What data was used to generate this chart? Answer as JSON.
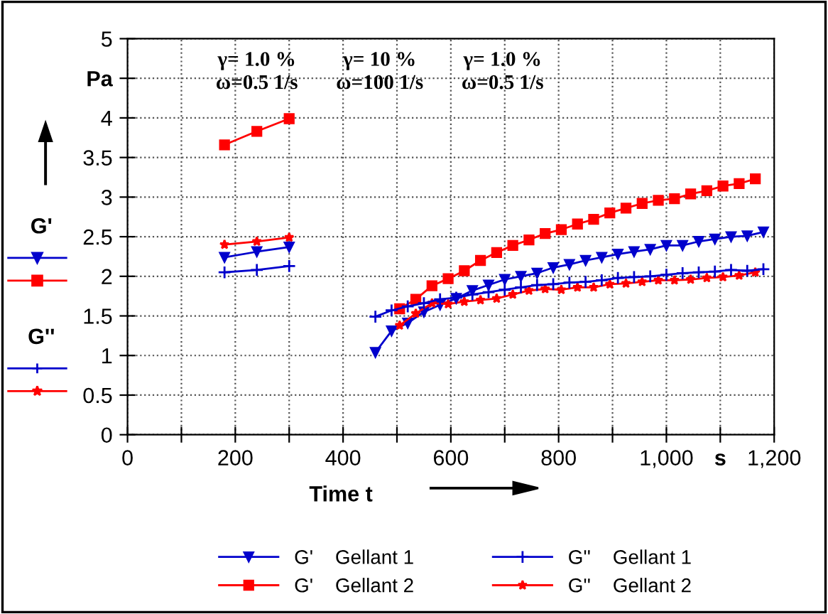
{
  "chart_data": {
    "type": "line",
    "xlabel": "Time t",
    "xlim": [
      0,
      1200
    ],
    "xticks": [
      0,
      {
        "value": 100,
        "label": null
      },
      200,
      {
        "value": 300,
        "label": null
      },
      400,
      {
        "value": 500,
        "label": null
      },
      600,
      {
        "value": 700,
        "label": null
      },
      800,
      {
        "value": 900,
        "label": null
      },
      {
        "value": 1000,
        "label": "1,000"
      },
      {
        "value": 1100,
        "label": "s"
      },
      {
        "value": 1200,
        "label": "1,200"
      }
    ],
    "ylim": [
      0,
      5
    ],
    "yticks": [
      0,
      0.5,
      1,
      1.5,
      2,
      2.5,
      3,
      3.5,
      4,
      {
        "value": 4.5,
        "label": "Pa"
      },
      5
    ],
    "grid": true,
    "legend": "bottom",
    "line_style": "solid",
    "annotations": [
      "γ= 1.0 %\nω=0.5 1/s",
      "γ= 10 %\nω=100 1/s",
      "γ= 1.0 %\nω=0.5 1/s",
      "G'",
      "G''"
    ],
    "series": [
      {
        "name": "G'    Gellant 1",
        "color": "#0000cc",
        "marker": "triangle",
        "x": [
          180,
          240,
          300,
          null,
          460,
          490,
          520,
          550,
          580,
          610,
          640,
          670,
          700,
          730,
          760,
          790,
          820,
          850,
          880,
          910,
          940,
          970,
          1000,
          1030,
          1060,
          1090,
          1120,
          1150,
          1180
        ],
        "values": [
          2.24,
          2.31,
          2.37,
          null,
          1.04,
          1.31,
          1.41,
          1.55,
          1.64,
          1.72,
          1.82,
          1.89,
          1.96,
          2.0,
          2.04,
          2.11,
          2.15,
          2.2,
          2.24,
          2.28,
          2.31,
          2.34,
          2.39,
          2.39,
          2.44,
          2.47,
          2.5,
          2.51,
          2.56
        ]
      },
      {
        "name": "G'    Gellant 2",
        "color": "#ff0000",
        "marker": "square",
        "x": [
          180,
          240,
          300,
          null,
          505,
          535,
          565,
          595,
          625,
          655,
          685,
          715,
          745,
          775,
          805,
          835,
          865,
          895,
          925,
          955,
          985,
          1015,
          1045,
          1075,
          1105,
          1135,
          1165
        ],
        "values": [
          3.66,
          3.83,
          3.99,
          null,
          1.59,
          1.71,
          1.88,
          1.97,
          2.07,
          2.2,
          2.3,
          2.39,
          2.46,
          2.54,
          2.59,
          2.66,
          2.72,
          2.8,
          2.86,
          2.92,
          2.96,
          2.98,
          3.04,
          3.08,
          3.14,
          3.17,
          3.23
        ]
      },
      {
        "name": "G''    Gellant 1",
        "color": "#0000cc",
        "marker": "cross",
        "x": [
          180,
          240,
          300,
          null,
          460,
          490,
          520,
          550,
          580,
          610,
          640,
          670,
          700,
          730,
          760,
          790,
          820,
          850,
          880,
          910,
          940,
          970,
          1000,
          1030,
          1060,
          1090,
          1120,
          1150,
          1180
        ],
        "values": [
          2.05,
          2.08,
          2.13,
          null,
          1.49,
          1.57,
          1.62,
          1.66,
          1.71,
          1.73,
          1.77,
          1.8,
          1.83,
          1.86,
          1.89,
          1.9,
          1.92,
          1.93,
          1.95,
          1.98,
          1.99,
          2.0,
          2.02,
          2.04,
          2.05,
          2.06,
          2.08,
          2.07,
          2.09
        ]
      },
      {
        "name": "G''    Gellant 2",
        "color": "#ff0000",
        "marker": "star",
        "x": [
          180,
          240,
          300,
          null,
          505,
          535,
          565,
          595,
          625,
          655,
          685,
          715,
          745,
          775,
          805,
          835,
          865,
          895,
          925,
          955,
          985,
          1015,
          1045,
          1075,
          1105,
          1135,
          1165
        ],
        "values": [
          2.4,
          2.44,
          2.49,
          null,
          1.38,
          1.53,
          1.66,
          1.65,
          1.68,
          1.7,
          1.72,
          1.77,
          1.82,
          1.84,
          1.83,
          1.86,
          1.86,
          1.9,
          1.91,
          1.93,
          1.95,
          1.95,
          1.96,
          1.98,
          1.99,
          2.01,
          2.05
        ]
      }
    ]
  }
}
